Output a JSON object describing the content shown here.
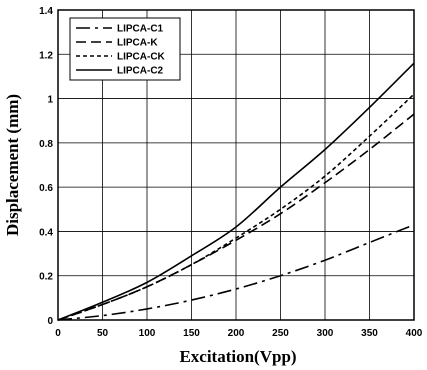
{
  "chart_data": {
    "type": "line",
    "title": "",
    "xlabel": "Excitation(Vpp)",
    "ylabel": "Displacement (mm)",
    "xlim": [
      0,
      400
    ],
    "ylim": [
      0,
      1.4
    ],
    "xticks": [
      0,
      50,
      100,
      150,
      200,
      250,
      300,
      350,
      400
    ],
    "xtick_labels": [
      "0",
      "50",
      "100",
      "150",
      "200",
      "250",
      "300",
      "350",
      "400"
    ],
    "yticks": [
      0,
      0.2,
      0.4,
      0.6,
      0.8,
      1.0,
      1.2,
      1.4
    ],
    "ytick_labels": [
      "0",
      "0.2",
      "0.4",
      "0.6",
      "0.8",
      "1",
      "1.2",
      "1.4"
    ],
    "grid": true,
    "legend_position": "top-left",
    "x": [
      0,
      50,
      100,
      150,
      200,
      250,
      300,
      350,
      400
    ],
    "series": [
      {
        "name": "LIPCA-C1",
        "style": "long-dash-dot",
        "values": [
          0,
          0.02,
          0.05,
          0.09,
          0.14,
          0.2,
          0.27,
          0.35,
          0.43
        ]
      },
      {
        "name": "LIPCA-K",
        "style": "dashed",
        "values": [
          0,
          0.07,
          0.15,
          0.25,
          0.36,
          0.48,
          0.62,
          0.77,
          0.93
        ]
      },
      {
        "name": "LIPCA-CK",
        "style": "dotted",
        "values": [
          0,
          0.07,
          0.15,
          0.25,
          0.37,
          0.5,
          0.65,
          0.83,
          1.02
        ]
      },
      {
        "name": "LIPCA-C2",
        "style": "solid",
        "values": [
          0,
          0.08,
          0.17,
          0.29,
          0.42,
          0.6,
          0.77,
          0.96,
          1.16
        ]
      }
    ]
  }
}
